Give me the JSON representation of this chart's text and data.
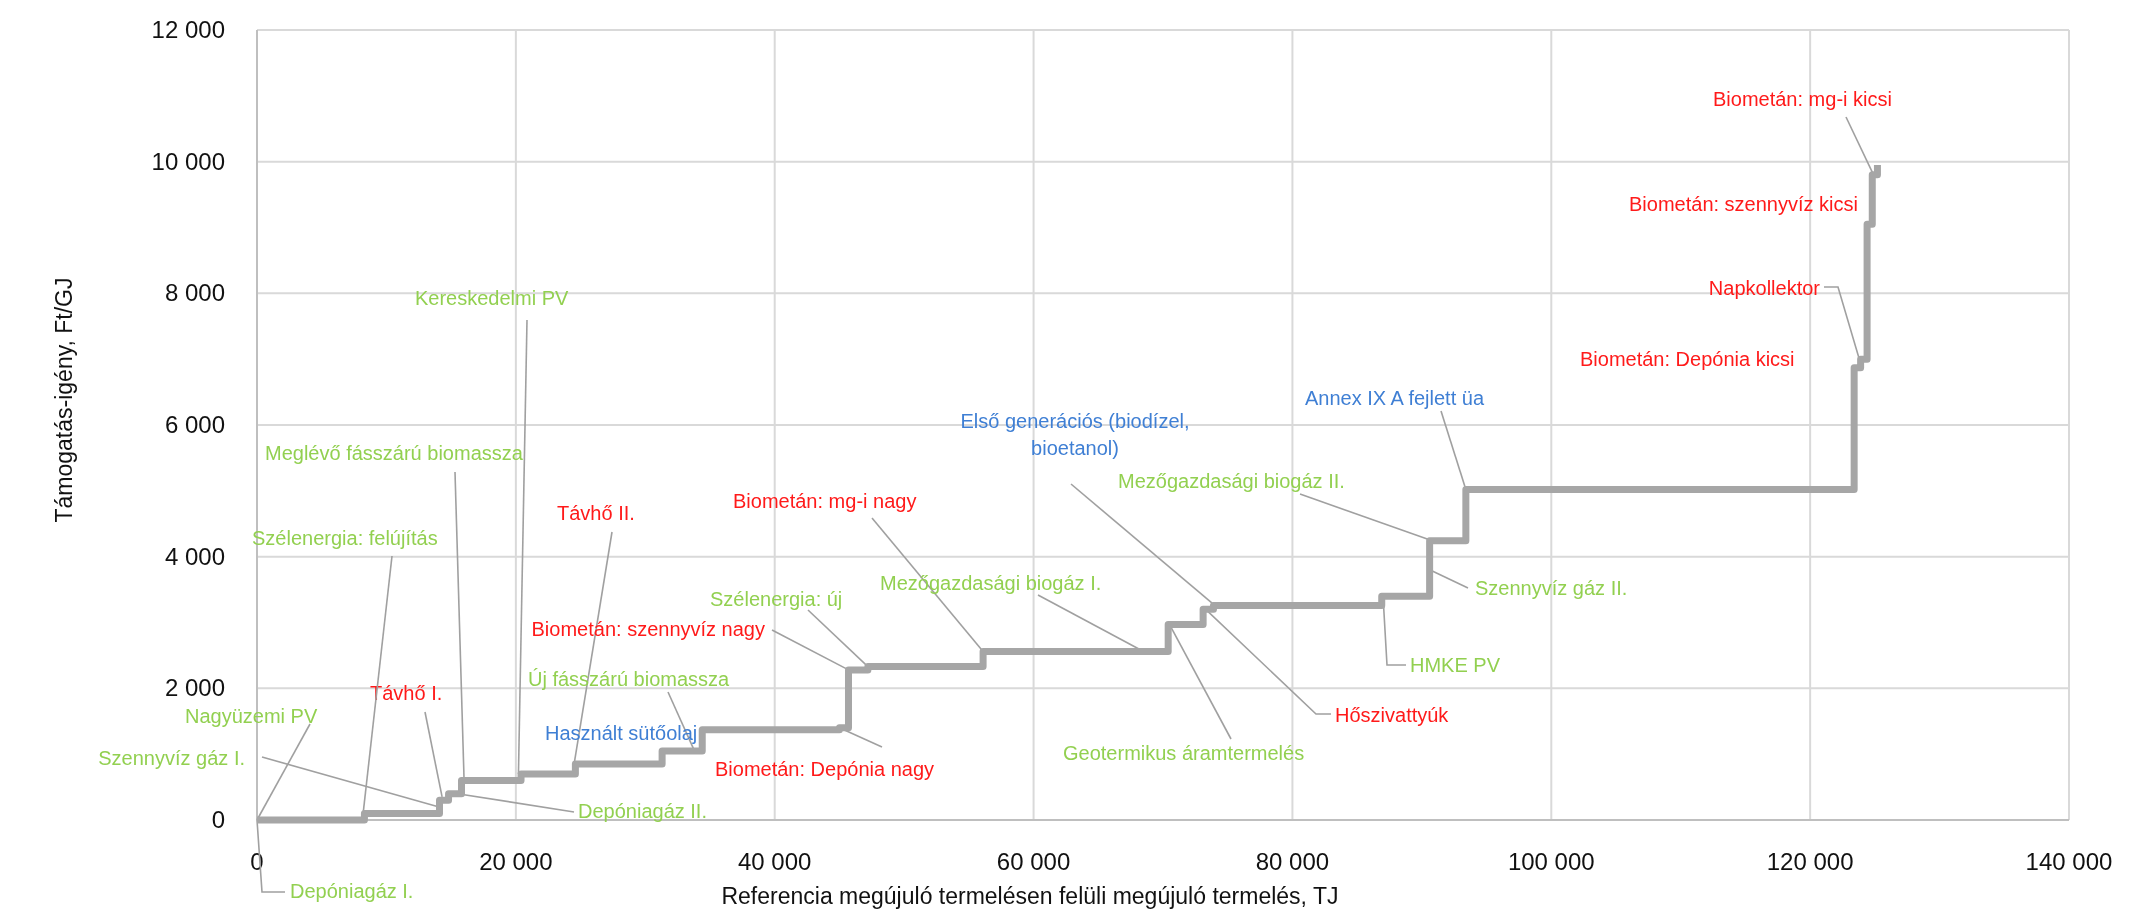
{
  "chart_data": {
    "type": "step",
    "xlabel": "Referencia megújuló termelésen felüli megújuló termelés, TJ",
    "ylabel": "Támogatás-igény, Ft/GJ",
    "x": [
      0,
      8300,
      14100,
      14800,
      15800,
      20400,
      24600,
      31300,
      34400,
      45000,
      45700,
      47200,
      56100,
      68500,
      70400,
      73100,
      73900,
      86900,
      90600,
      93400,
      123400,
      123900,
      124400,
      124800,
      125200
    ],
    "series": [
      {
        "color": "#a6a6a6",
        "values": [
          0,
          100,
          300,
          400,
          600,
          700,
          850,
          1050,
          1370,
          1400,
          2280,
          2330,
          2560,
          2560,
          2970,
          3200,
          3260,
          3400,
          4240,
          5020,
          6870,
          7000,
          9050,
          9800,
          9950
        ]
      }
    ],
    "xlim": [
      0,
      140000
    ],
    "xticks": [
      {
        "value": 0,
        "label": "0"
      },
      {
        "value": 20000,
        "label": "20 000"
      },
      {
        "value": 40000,
        "label": "40 000"
      },
      {
        "value": 60000,
        "label": "60 000"
      },
      {
        "value": 80000,
        "label": "80 000"
      },
      {
        "value": 100000,
        "label": "100 000"
      },
      {
        "value": 120000,
        "label": "120 000"
      },
      {
        "value": 140000,
        "label": "140 000"
      }
    ],
    "ylim": [
      0,
      12000
    ],
    "yticks": [
      {
        "value": 0,
        "label": "0"
      },
      {
        "value": 2000,
        "label": "2 000"
      },
      {
        "value": 4000,
        "label": "4 000"
      },
      {
        "value": 6000,
        "label": "6 000"
      },
      {
        "value": 8000,
        "label": "8 000"
      },
      {
        "value": 10000,
        "label": "10 000"
      },
      {
        "value": 12000,
        "label": "12 000"
      }
    ],
    "grid": true,
    "marker": "none",
    "line_style": "solid",
    "annotations": [
      {
        "text": "Depóniagáz I.",
        "x": 0,
        "y": 0
      },
      {
        "text": "Szennyvíz gáz I.",
        "x": 14000,
        "y": 200
      },
      {
        "text": "Nagyüzemi PV",
        "x": 0,
        "y": 0
      },
      {
        "text": "Távhő I.",
        "x": 14300,
        "y": 350
      },
      {
        "text": "Szélenergia: felújítás",
        "x": 8200,
        "y": 100
      },
      {
        "text": "Meglévő fásszárú biomassza",
        "x": 16000,
        "y": 600
      },
      {
        "text": "Kereskedelmi PV",
        "x": 20200,
        "y": 700
      },
      {
        "text": "Depóniagáz II.",
        "x": 15500,
        "y": 400
      },
      {
        "text": "Távhő II.",
        "x": 24500,
        "y": 850
      },
      {
        "text": "Biometán: szennyvíz nagy",
        "x": 45700,
        "y": 2280
      },
      {
        "text": "Új fásszárú biomassza",
        "x": 33800,
        "y": 1050
      },
      "Használt sütőolaj",
      {
        "text": "Biometán: Depónia nagy",
        "x": 45000,
        "y": 1400
      },
      {
        "text": "Szélenergia: új",
        "x": 47200,
        "y": 2330
      },
      {
        "text": "Biometán: mg-i nagy",
        "x": 56100,
        "y": 2560
      },
      {
        "text": "Mezőgazdasági biogáz I.",
        "x": 68500,
        "y": 2560
      },
      {
        "text": "Első generációs (biodízel, bioetanol)",
        "x": 74000,
        "y": 3260
      },
      {
        "text": "Geotermikus áramtermelés",
        "x": 70500,
        "y": 2970
      },
      {
        "text": "Hőszivattyúk",
        "x": 73300,
        "y": 3200
      },
      {
        "text": "HMKE PV",
        "x": 87000,
        "y": 3400
      },
      {
        "text": "Szennyvíz gáz II.",
        "x": 90600,
        "y": 3800
      },
      {
        "text": "Mezőgazdasági biogáz II.",
        "x": 90800,
        "y": 4240
      },
      {
        "text": "Annex IX A fejlett üa",
        "x": 93400,
        "y": 5020
      },
      "Biometán: Depónia kicsi",
      {
        "text": "Napkollektor",
        "x": 123800,
        "y": 7000
      },
      "Biometán: szennyvíz kicsi",
      {
        "text": "Biometán: mg-i kicsi",
        "x": 124900,
        "y": 9800
      }
    ]
  }
}
